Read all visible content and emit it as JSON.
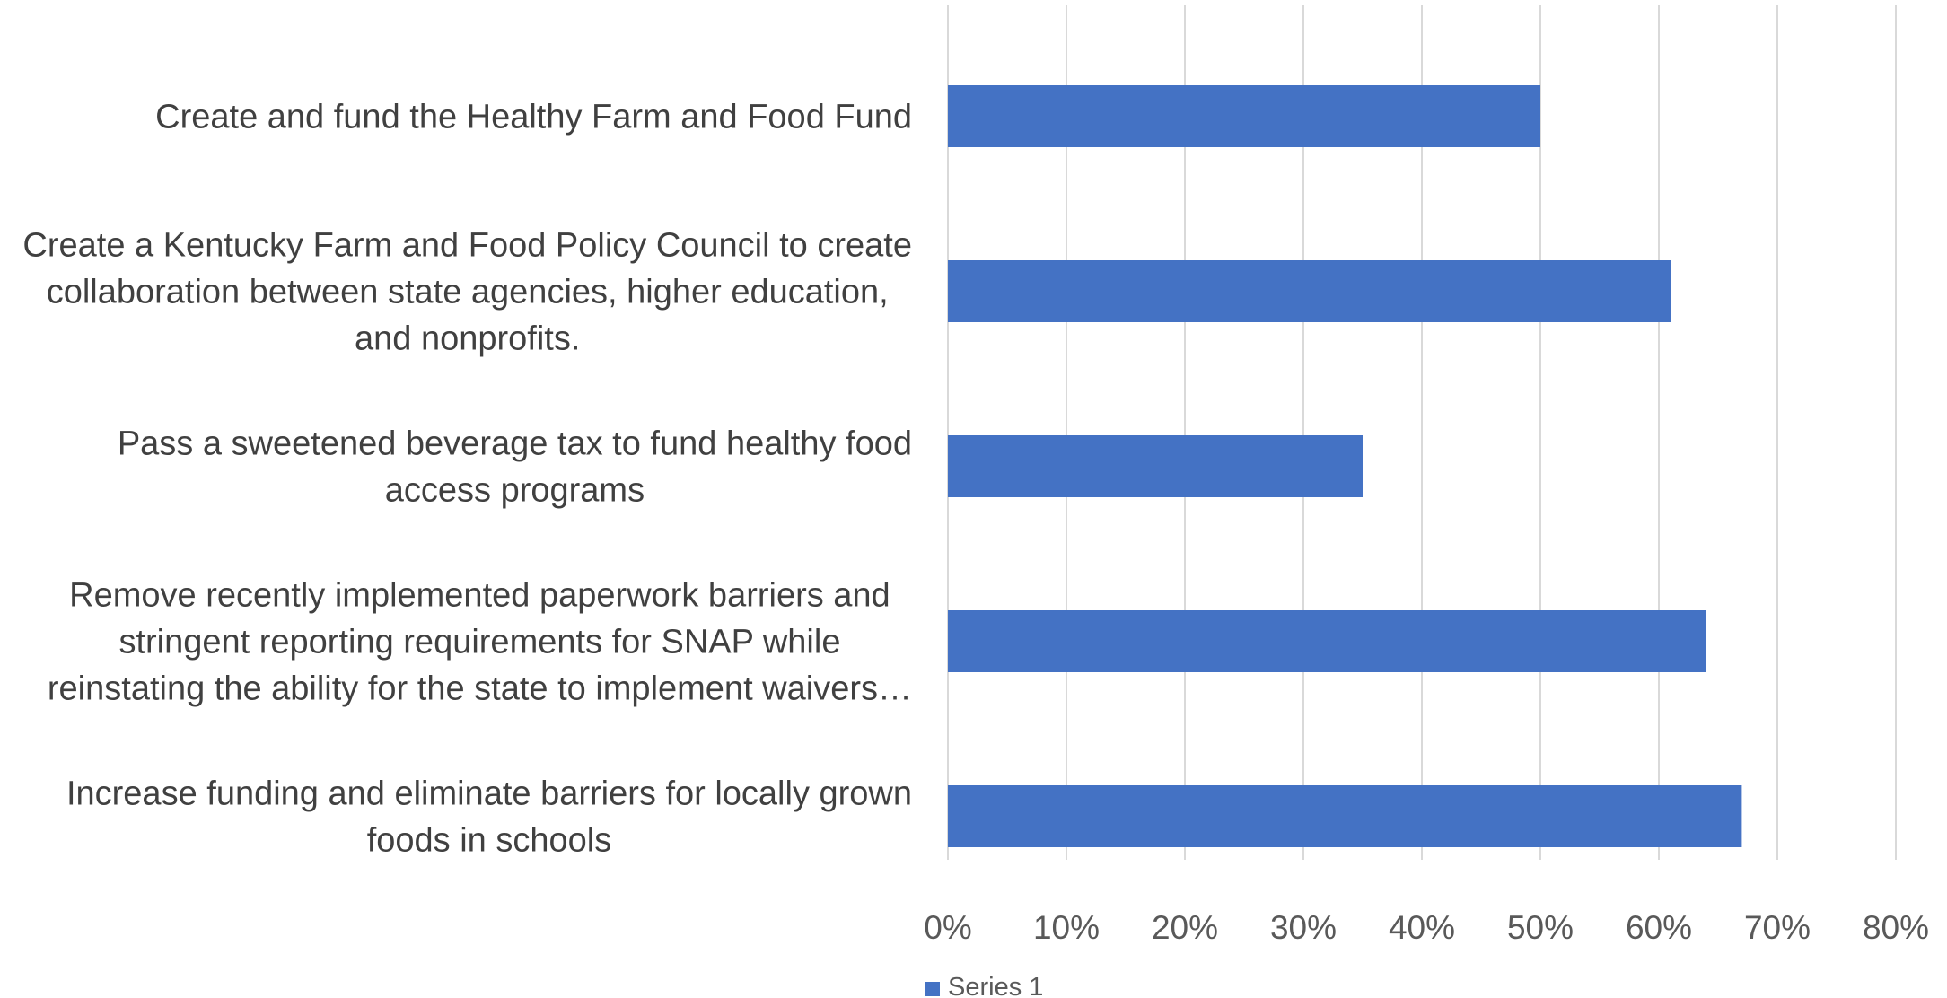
{
  "chart_data": {
    "type": "bar",
    "orientation": "horizontal",
    "categories": [
      "Create and fund the Healthy Farm and Food Fund",
      "Create a Kentucky Farm and Food Policy Council to create collaboration between state agencies, higher education, and nonprofits.",
      "Pass a sweetened beverage tax to fund healthy food access programs",
      "Remove recently implemented paperwork barriers and stringent reporting requirements for SNAP while reinstating the ability for the state to implement waivers…",
      "Increase funding and eliminate barriers for locally grown foods in schools"
    ],
    "category_lines": [
      [
        "Create and fund the Healthy Farm and Food Fund"
      ],
      [
        "Create a Kentucky Farm and Food Policy Council to create",
        "collaboration between state agencies, higher education,",
        "and nonprofits."
      ],
      [
        "Pass a sweetened beverage tax to fund healthy food",
        "access programs"
      ],
      [
        "Remove recently implemented paperwork barriers and",
        "stringent reporting requirements for SNAP while",
        "reinstating the ability for the state to implement waivers…"
      ],
      [
        "Increase funding and eliminate barriers for locally grown",
        "foods in schools"
      ]
    ],
    "series": [
      {
        "name": "Series 1",
        "values": [
          0.5,
          0.61,
          0.35,
          0.64,
          0.67
        ],
        "color": "#4472c4"
      }
    ],
    "xlim": [
      0,
      0.8
    ],
    "xticks": [
      0,
      0.1,
      0.2,
      0.3,
      0.4,
      0.5,
      0.6,
      0.7,
      0.8
    ],
    "xtick_labels": [
      "0%",
      "10%",
      "20%",
      "30%",
      "40%",
      "50%",
      "60%",
      "70%",
      "80%"
    ],
    "grid": "vertical",
    "legend": "bottom-left",
    "title": "",
    "xlabel": "",
    "ylabel": ""
  },
  "colors": {
    "bar": "#4472c4",
    "grid": "#d9d9d9",
    "category_text": "#404040",
    "tick_text": "#595959"
  }
}
